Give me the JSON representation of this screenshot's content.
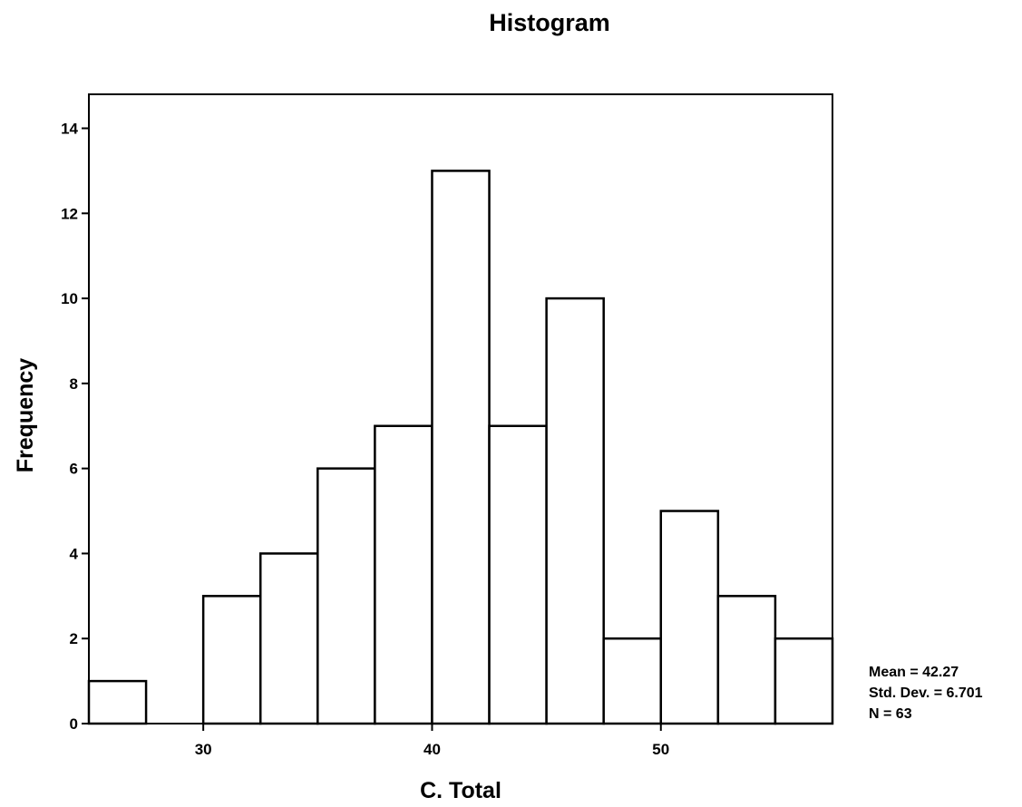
{
  "chart_data": {
    "type": "bar",
    "title": "Histogram",
    "xlabel": "C. Total",
    "ylabel": "Frequency",
    "bins": [
      {
        "x0": 25.0,
        "x1": 27.5,
        "count": 1
      },
      {
        "x0": 27.5,
        "x1": 30.0,
        "count": 0
      },
      {
        "x0": 30.0,
        "x1": 32.5,
        "count": 3
      },
      {
        "x0": 32.5,
        "x1": 35.0,
        "count": 4
      },
      {
        "x0": 35.0,
        "x1": 37.5,
        "count": 6
      },
      {
        "x0": 37.5,
        "x1": 40.0,
        "count": 7
      },
      {
        "x0": 40.0,
        "x1": 42.5,
        "count": 13
      },
      {
        "x0": 42.5,
        "x1": 45.0,
        "count": 7
      },
      {
        "x0": 45.0,
        "x1": 47.5,
        "count": 10
      },
      {
        "x0": 47.5,
        "x1": 50.0,
        "count": 2
      },
      {
        "x0": 50.0,
        "x1": 52.5,
        "count": 5
      },
      {
        "x0": 52.5,
        "x1": 55.0,
        "count": 3
      },
      {
        "x0": 55.0,
        "x1": 57.5,
        "count": 2
      }
    ],
    "xlim": [
      25.0,
      57.5
    ],
    "ylim": [
      0,
      14.8
    ],
    "xticks": [
      30,
      40,
      50
    ],
    "yticks": [
      0,
      2,
      4,
      6,
      8,
      10,
      12,
      14
    ],
    "grid": false,
    "legend": "none",
    "stats": {
      "mean": "Mean = 42.27",
      "std_dev": "Std. Dev. = 6.701",
      "n": "N = 63"
    },
    "colors": {
      "bar_fill": "#ffffff",
      "bar_stroke": "#000000"
    }
  }
}
